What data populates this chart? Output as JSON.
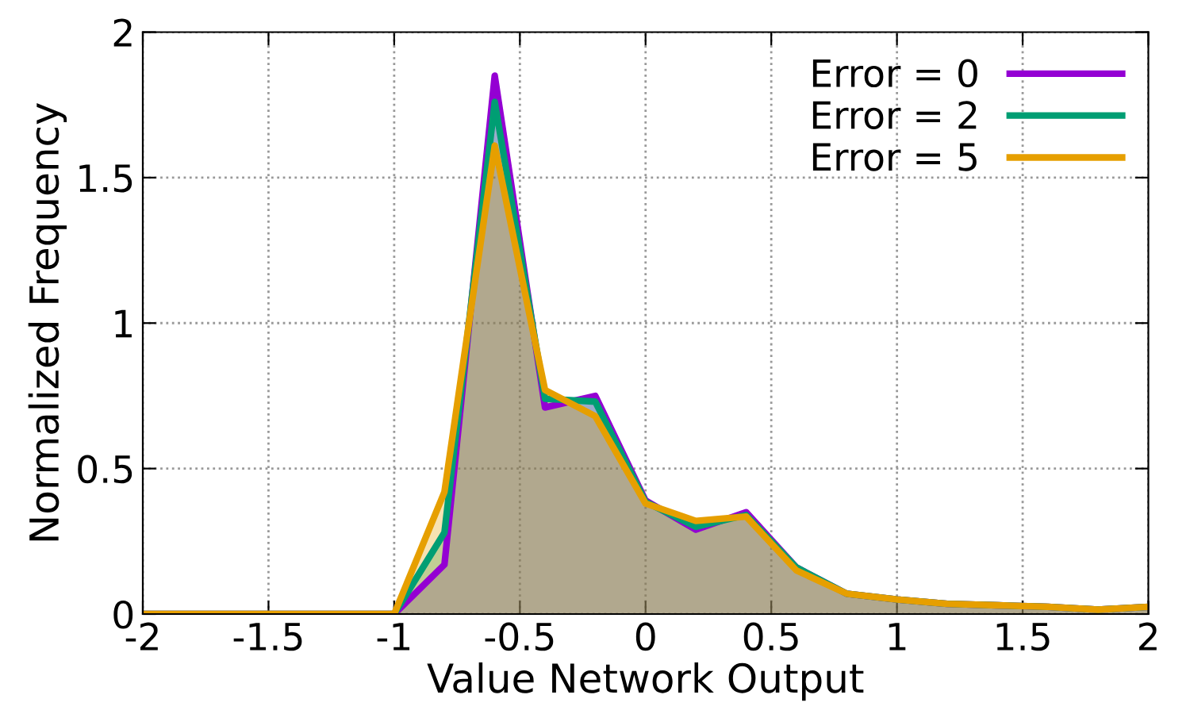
{
  "chart_data": {
    "type": "area",
    "xlabel": "Value Network Output",
    "ylabel": "Normalized Frequency",
    "x": [
      -2,
      -1.8,
      -1.6,
      -1.4,
      -1.2,
      -1,
      -0.8,
      -0.6,
      -0.4,
      -0.2,
      0,
      0.2,
      0.4,
      0.6,
      0.8,
      1,
      1.2,
      1.4,
      1.6,
      1.8,
      2
    ],
    "series": [
      {
        "name": "Error = 0",
        "color": "#9400d3",
        "values": [
          0,
          0,
          0,
          0,
          0,
          0,
          0.17,
          1.85,
          0.71,
          0.75,
          0.39,
          0.29,
          0.35,
          0.16,
          0.07,
          0.05,
          0.035,
          0.03,
          0.025,
          0.015,
          0.025
        ]
      },
      {
        "name": "Error = 2",
        "color": "#009e73",
        "values": [
          0,
          0,
          0,
          0,
          0,
          0,
          0.28,
          1.76,
          0.74,
          0.73,
          0.385,
          0.3,
          0.34,
          0.16,
          0.07,
          0.05,
          0.035,
          0.03,
          0.025,
          0.015,
          0.025
        ]
      },
      {
        "name": "Error = 5",
        "color": "#e69f00",
        "values": [
          0,
          0,
          0,
          0,
          0,
          0,
          0.42,
          1.61,
          0.77,
          0.68,
          0.38,
          0.32,
          0.335,
          0.15,
          0.07,
          0.05,
          0.035,
          0.03,
          0.025,
          0.015,
          0.025
        ]
      }
    ],
    "xlim": [
      -2,
      2
    ],
    "ylim": [
      0,
      2
    ],
    "xticks": [
      -2,
      -1.5,
      -1,
      -0.5,
      0,
      0.5,
      1,
      1.5,
      2
    ],
    "yticks": [
      0,
      0.5,
      1,
      1.5,
      2
    ],
    "grid": true,
    "legend": "top right"
  }
}
